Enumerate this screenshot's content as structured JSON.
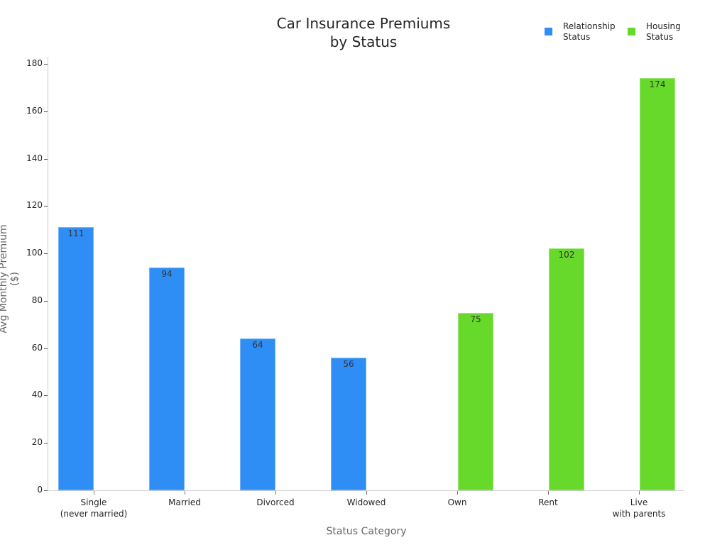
{
  "chart_data": {
    "type": "bar",
    "title": "Car Insurance Premiums\nby Status",
    "title_lines": [
      "Car Insurance Premiums",
      "by Status"
    ],
    "xlabel": "Status Category",
    "ylabel": "Avg Monthly Premium ($)",
    "ylim": [
      0,
      180
    ],
    "yticks": [
      0,
      20,
      40,
      60,
      80,
      100,
      120,
      140,
      160,
      180
    ],
    "grid": false,
    "legend_position": "top-right",
    "categories": [
      "Single\n(never married)",
      "Married",
      "Divorced",
      "Widowed",
      "Own",
      "Rent",
      "Live\nwith parents"
    ],
    "series": [
      {
        "name": "Relationship Status",
        "color": "#2e8ef5",
        "values": [
          111,
          94,
          64,
          56,
          null,
          null,
          null
        ]
      },
      {
        "name": "Housing Status",
        "color": "#66d92a",
        "values": [
          null,
          null,
          null,
          null,
          75,
          102,
          174
        ]
      }
    ],
    "legend": [
      {
        "label": "Relationship\nStatus",
        "color": "#2e8ef5"
      },
      {
        "label": "Housing\nStatus",
        "color": "#66d92a"
      }
    ]
  }
}
